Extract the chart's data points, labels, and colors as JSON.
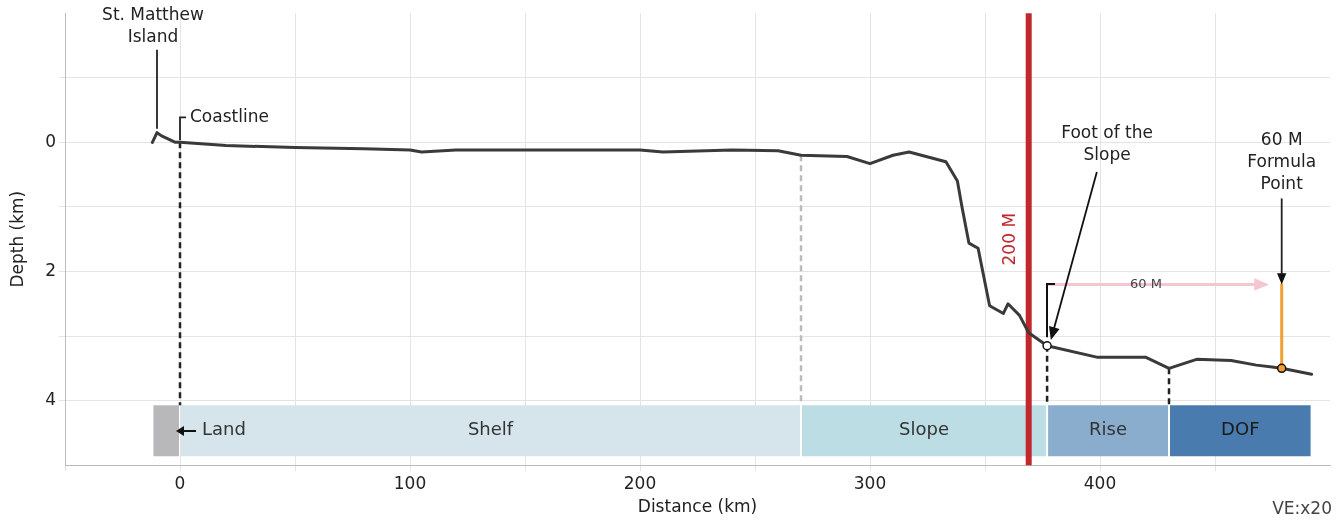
{
  "chart_data": {
    "type": "line",
    "xlabel": "Distance (km)",
    "ylabel": "Depth (km)",
    "xlim": [
      -50,
      500
    ],
    "ylim": [
      5,
      -2
    ],
    "xticks": [
      {
        "value": -50,
        "label": null
      },
      0,
      {
        "value": 50,
        "label": null
      },
      100,
      {
        "value": 150,
        "label": null
      },
      200,
      {
        "value": 250,
        "label": null
      },
      300,
      {
        "value": 350,
        "label": null
      },
      400,
      {
        "value": 450,
        "label": null
      }
    ],
    "yticks": [
      {
        "value": -1,
        "label": null
      },
      0,
      {
        "value": 1,
        "label": null
      },
      2,
      {
        "value": 3,
        "label": null
      },
      4
    ],
    "grid": true,
    "legend": false,
    "line_style": "solid",
    "series": [
      {
        "color": "#3a3a3a",
        "x": [
          -12,
          -10,
          -8,
          -5,
          -2,
          0,
          20,
          50,
          80,
          100,
          105,
          120,
          150,
          200,
          210,
          240,
          260,
          270,
          290,
          300,
          310,
          317,
          333,
          338,
          340,
          343,
          347,
          352,
          358,
          360,
          365,
          369,
          377,
          399,
          420,
          430,
          442,
          457,
          468,
          479,
          492
        ],
        "values": [
          0.0,
          -0.15,
          -0.1,
          -0.05,
          0.0,
          0.0,
          0.05,
          0.08,
          0.1,
          0.12,
          0.15,
          0.12,
          0.12,
          0.12,
          0.15,
          0.12,
          0.13,
          0.2,
          0.22,
          0.33,
          0.2,
          0.15,
          0.3,
          0.6,
          1.0,
          1.56,
          1.64,
          2.53,
          2.65,
          2.5,
          2.68,
          2.95,
          3.15,
          3.33,
          3.33,
          3.5,
          3.36,
          3.38,
          3.45,
          3.5,
          3.59
        ]
      },
      {
        "type": "line",
        "color": "#f0a030",
        "x": [
          479,
          479
        ],
        "values": [
          2.2,
          3.5
        ]
      },
      {
        "type": "line",
        "color": "#f4c6d0",
        "x": [
          377,
          470
        ],
        "values": [
          2.2,
          2.2
        ]
      }
    ],
    "ref_lines": [
      {
        "axis": "x",
        "value": 369,
        "label": "200 M",
        "color": "#c0282d",
        "line_style": "solid"
      },
      {
        "axis": "x",
        "value": 0,
        "line_style": "dashed",
        "color": "#222222"
      },
      {
        "axis": "x",
        "value": 270,
        "line_style": "dashed",
        "color": "#bbbbbb"
      },
      {
        "axis": "x",
        "value": 377,
        "line_style": "dashed",
        "color": "#222222"
      },
      {
        "axis": "x",
        "value": 430,
        "line_style": "dashed",
        "color": "#222222"
      }
    ],
    "bands": [
      {
        "axis": "x",
        "from": -12,
        "to": 0,
        "label": "Land",
        "color": "#b8b8ba"
      },
      {
        "axis": "x",
        "from": 0,
        "to": 270,
        "label": "Shelf",
        "color": "#d6e5ec"
      },
      {
        "axis": "x",
        "from": 270,
        "to": 377,
        "label": "Slope",
        "color": "#bcdde4"
      },
      {
        "axis": "x",
        "from": 377,
        "to": 430,
        "label": "Rise",
        "color": "#8aaccd"
      },
      {
        "axis": "x",
        "from": 430,
        "to": 492,
        "label": "DOF",
        "color": "#4a7bae"
      }
    ],
    "annotations": [
      {
        "text": "St. Matthew Island",
        "x": -10,
        "y": -0.15
      },
      {
        "text": "Coastline",
        "x": 0,
        "y": 0
      },
      "Foot of the Slope",
      {
        "text": "60 M Formula Point",
        "x": 479,
        "y": 2.2
      },
      {
        "text": "60 M",
        "x": 420,
        "y": 2.2
      },
      "VE:x20"
    ]
  }
}
